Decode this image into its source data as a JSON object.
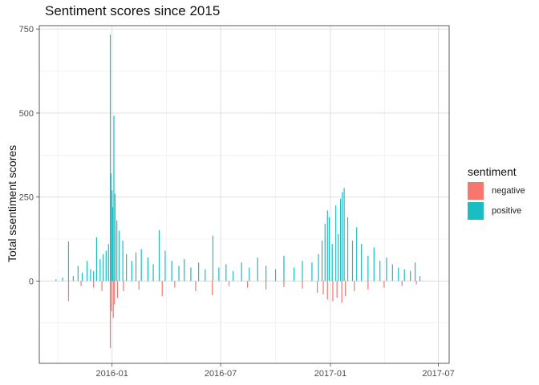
{
  "chart_data": {
    "type": "bar",
    "title": "Sentiment scores since 2015",
    "xlabel": "",
    "ylabel": "Total ssentiment scores",
    "x_ticks": [
      "2016-01",
      "2016-07",
      "2017-01",
      "2017-07"
    ],
    "y_ticks": [
      0,
      250,
      500,
      750
    ],
    "ylim": [
      -245,
      760
    ],
    "xlim": [
      "2015-09-01",
      "2017-07-19"
    ],
    "grid": true,
    "legend_title": "sentiment",
    "legend_position": "right",
    "series": [
      {
        "name": "positive",
        "color": "#19BDC2",
        "points": [
          [
            "2015-09-29",
            5
          ],
          [
            "2015-10-10",
            10
          ],
          [
            "2015-10-20",
            118
          ],
          [
            "2015-10-28",
            15
          ],
          [
            "2015-11-05",
            45
          ],
          [
            "2015-11-12",
            25
          ],
          [
            "2015-11-20",
            60
          ],
          [
            "2015-11-26",
            35
          ],
          [
            "2015-12-01",
            30
          ],
          [
            "2015-12-06",
            130
          ],
          [
            "2015-12-12",
            65
          ],
          [
            "2015-12-17",
            80
          ],
          [
            "2015-12-22",
            90
          ],
          [
            "2015-12-26",
            110
          ],
          [
            "2015-12-29",
            733
          ],
          [
            "2015-12-30",
            320
          ],
          [
            "2016-01-01",
            270
          ],
          [
            "2016-01-02",
            220
          ],
          [
            "2016-01-04",
            492
          ],
          [
            "2016-01-06",
            260
          ],
          [
            "2016-01-09",
            180
          ],
          [
            "2016-01-13",
            150
          ],
          [
            "2016-01-19",
            120
          ],
          [
            "2016-01-25",
            80
          ],
          [
            "2016-02-03",
            60
          ],
          [
            "2016-02-10",
            85
          ],
          [
            "2016-02-19",
            95
          ],
          [
            "2016-03-01",
            70
          ],
          [
            "2016-03-10",
            50
          ],
          [
            "2016-03-20",
            152
          ],
          [
            "2016-03-30",
            90
          ],
          [
            "2016-04-10",
            60
          ],
          [
            "2016-04-22",
            45
          ],
          [
            "2016-05-01",
            65
          ],
          [
            "2016-05-12",
            40
          ],
          [
            "2016-05-25",
            55
          ],
          [
            "2016-06-05",
            35
          ],
          [
            "2016-06-18",
            135
          ],
          [
            "2016-06-28",
            40
          ],
          [
            "2016-07-10",
            50
          ],
          [
            "2016-07-22",
            30
          ],
          [
            "2016-08-05",
            55
          ],
          [
            "2016-08-18",
            40
          ],
          [
            "2016-09-01",
            70
          ],
          [
            "2016-09-15",
            45
          ],
          [
            "2016-10-01",
            35
          ],
          [
            "2016-10-15",
            75
          ],
          [
            "2016-11-01",
            40
          ],
          [
            "2016-11-15",
            60
          ],
          [
            "2016-12-01",
            55
          ],
          [
            "2016-12-12",
            80
          ],
          [
            "2016-12-18",
            120
          ],
          [
            "2016-12-23",
            170
          ],
          [
            "2016-12-27",
            210
          ],
          [
            "2016-12-30",
            190
          ],
          [
            "2017-01-04",
            110
          ],
          [
            "2017-01-10",
            225
          ],
          [
            "2017-01-14",
            140
          ],
          [
            "2017-01-18",
            245
          ],
          [
            "2017-01-21",
            265
          ],
          [
            "2017-01-24",
            277
          ],
          [
            "2017-01-30",
            190
          ],
          [
            "2017-02-07",
            120
          ],
          [
            "2017-02-14",
            160
          ],
          [
            "2017-02-22",
            110
          ],
          [
            "2017-03-05",
            75
          ],
          [
            "2017-03-15",
            100
          ],
          [
            "2017-03-25",
            60
          ],
          [
            "2017-04-05",
            70
          ],
          [
            "2017-04-15",
            50
          ],
          [
            "2017-04-25",
            40
          ],
          [
            "2017-05-05",
            35
          ],
          [
            "2017-05-15",
            30
          ],
          [
            "2017-05-23",
            55
          ],
          [
            "2017-05-31",
            15
          ]
        ]
      },
      {
        "name": "negative",
        "color": "#F8766D",
        "points": [
          [
            "2015-10-20",
            -60
          ],
          [
            "2015-11-10",
            -15
          ],
          [
            "2015-12-01",
            -20
          ],
          [
            "2015-12-15",
            -30
          ],
          [
            "2015-12-29",
            -200
          ],
          [
            "2015-12-31",
            -90
          ],
          [
            "2016-01-03",
            -110
          ],
          [
            "2016-01-05",
            -70
          ],
          [
            "2016-01-10",
            -50
          ],
          [
            "2016-01-20",
            -30
          ],
          [
            "2016-02-15",
            -25
          ],
          [
            "2016-03-25",
            -45
          ],
          [
            "2016-04-15",
            -20
          ],
          [
            "2016-05-20",
            -30
          ],
          [
            "2016-06-17",
            -42
          ],
          [
            "2016-07-15",
            -15
          ],
          [
            "2016-08-15",
            -20
          ],
          [
            "2016-09-15",
            -25
          ],
          [
            "2016-10-15",
            -18
          ],
          [
            "2016-11-15",
            -22
          ],
          [
            "2016-12-10",
            -35
          ],
          [
            "2016-12-20",
            -40
          ],
          [
            "2016-12-27",
            -55
          ],
          [
            "2017-01-05",
            -60
          ],
          [
            "2017-01-12",
            -50
          ],
          [
            "2017-01-20",
            -65
          ],
          [
            "2017-01-26",
            -45
          ],
          [
            "2017-02-10",
            -30
          ],
          [
            "2017-03-05",
            -25
          ],
          [
            "2017-04-01",
            -20
          ],
          [
            "2017-05-01",
            -15
          ],
          [
            "2017-05-25",
            -10
          ]
        ]
      }
    ]
  }
}
